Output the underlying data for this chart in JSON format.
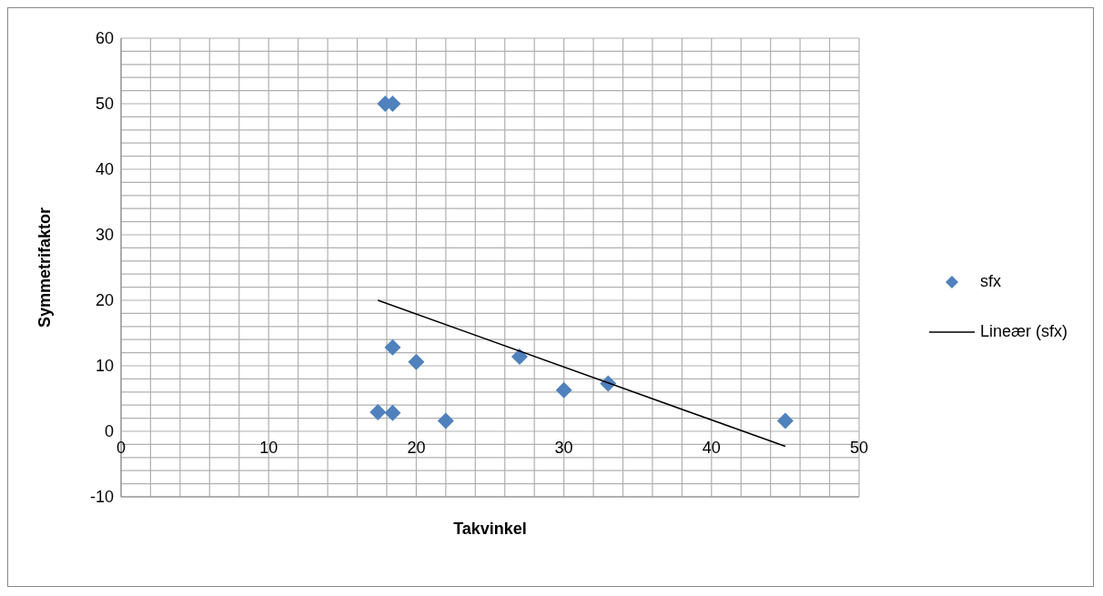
{
  "chart_data": {
    "type": "scatter",
    "xlabel": "Takvinkel",
    "ylabel": "Symmetrifaktor",
    "xlim": [
      0,
      50
    ],
    "xticks": [
      0,
      {
        "value": 2,
        "label": null
      },
      {
        "value": 4,
        "label": null
      },
      {
        "value": 6,
        "label": null
      },
      {
        "value": 8,
        "label": null
      },
      10,
      {
        "value": 12,
        "label": null
      },
      {
        "value": 14,
        "label": null
      },
      {
        "value": 16,
        "label": null
      },
      {
        "value": 18,
        "label": null
      },
      20,
      {
        "value": 22,
        "label": null
      },
      {
        "value": 24,
        "label": null
      },
      {
        "value": 26,
        "label": null
      },
      {
        "value": 28,
        "label": null
      },
      30,
      {
        "value": 32,
        "label": null
      },
      {
        "value": 34,
        "label": null
      },
      {
        "value": 36,
        "label": null
      },
      {
        "value": 38,
        "label": null
      },
      40,
      {
        "value": 42,
        "label": null
      },
      {
        "value": 44,
        "label": null
      },
      {
        "value": 46,
        "label": null
      },
      {
        "value": 48,
        "label": null
      },
      50
    ],
    "ylim": [
      -10,
      60
    ],
    "yticks": [
      -10,
      {
        "value": -8,
        "label": null
      },
      {
        "value": -6,
        "label": null
      },
      {
        "value": -4,
        "label": null
      },
      {
        "value": -2,
        "label": null
      },
      0,
      {
        "value": 2,
        "label": null
      },
      {
        "value": 4,
        "label": null
      },
      {
        "value": 6,
        "label": null
      },
      {
        "value": 8,
        "label": null
      },
      10,
      {
        "value": 12,
        "label": null
      },
      {
        "value": 14,
        "label": null
      },
      {
        "value": 16,
        "label": null
      },
      {
        "value": 18,
        "label": null
      },
      20,
      {
        "value": 22,
        "label": null
      },
      {
        "value": 24,
        "label": null
      },
      {
        "value": 26,
        "label": null
      },
      {
        "value": 28,
        "label": null
      },
      30,
      {
        "value": 32,
        "label": null
      },
      {
        "value": 34,
        "label": null
      },
      {
        "value": 36,
        "label": null
      },
      {
        "value": 38,
        "label": null
      },
      40,
      {
        "value": 42,
        "label": null
      },
      {
        "value": 44,
        "label": null
      },
      {
        "value": 46,
        "label": null
      },
      {
        "value": 48,
        "label": null
      },
      50,
      {
        "value": 52,
        "label": null
      },
      {
        "value": 54,
        "label": null
      },
      {
        "value": 56,
        "label": null
      },
      {
        "value": 58,
        "label": null
      },
      60
    ],
    "grid": true,
    "legend": "right",
    "marker": "diamond",
    "series": [
      {
        "name": "sfx",
        "color": "#4f81bd",
        "x": [
          17.9,
          18.4,
          18.4,
          20,
          17.4,
          18.4,
          22,
          27,
          30,
          33,
          45
        ],
        "values": [
          50,
          50,
          12.8,
          10.6,
          2.9,
          2.8,
          1.6,
          11.4,
          6.3,
          7.3,
          1.6
        ]
      },
      {
        "name": "Lineær (sfx)",
        "type": "line",
        "color": "#000000",
        "line_style": "solid",
        "marker": "none",
        "x": [
          17.4,
          45
        ],
        "values": [
          20,
          -2.3
        ]
      }
    ]
  }
}
